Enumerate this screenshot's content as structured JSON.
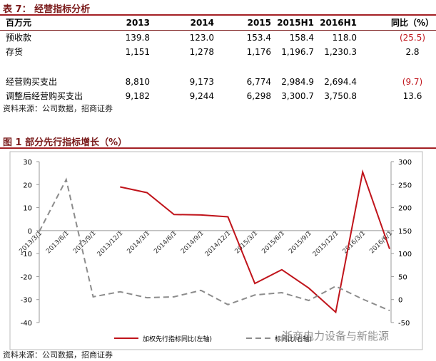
{
  "table_title": "表 7： 经营指标分析",
  "table": {
    "header": [
      "百万元",
      "2013",
      "2014",
      "2015",
      "2015H1",
      "2016H1",
      "同比（%）"
    ],
    "rows": [
      [
        "预收款",
        "139.8",
        "123.0",
        "153.4",
        "158.4",
        "118.0",
        "(25.5)"
      ],
      [
        "存货",
        "1,151",
        "1,278",
        "1,176",
        "1,196.7",
        "1,230.3",
        "2.8"
      ],
      [
        "经营购买支出",
        "8,810",
        "9,173",
        "6,774",
        "2,984.9",
        "2,694.4",
        "(9.7)"
      ],
      [
        "调整后经营购买支出",
        "9,182",
        "9,244",
        "6,298",
        "3,300.7",
        "3,750.8",
        "13.6"
      ]
    ]
  },
  "table_source": "资料来源：公司数据，招商证券",
  "figure_title": "图 1 部分先行指标增长（%）",
  "chart_data": {
    "type": "line",
    "categories": [
      "2013/3/1",
      "2013/6/1",
      "2013/9/1",
      "2013/12/1",
      "2014/3/1",
      "2014/6/1",
      "2014/9/1",
      "2014/12/1",
      "2015/3/1",
      "2015/6/1",
      "2015/9/1",
      "2015/12/1",
      "2016/3/1",
      "2016/6/1"
    ],
    "series": [
      {
        "name": "加权先行指标同比(左轴)",
        "color": "#c0141b",
        "values": [
          null,
          null,
          null,
          19,
          16.5,
          7,
          6.8,
          6,
          -23,
          -17,
          -25,
          -35.5,
          25.5,
          -8
        ]
      },
      {
        "name": "标同比(右轴)",
        "color": "#8c8c8c",
        "axis": "y2",
        "dashed": true,
        "values": [
          148,
          261,
          6,
          17,
          4,
          6,
          20,
          -11,
          10,
          15,
          -2,
          29,
          1,
          -24
        ]
      }
    ],
    "ylim": [
      -40,
      30
    ],
    "yticks": [
      -40,
      -30,
      -20,
      -10,
      0,
      10,
      20,
      30
    ],
    "y2lim": [
      -50,
      300
    ],
    "y2ticks": [
      -50,
      0,
      50,
      100,
      150,
      200,
      250,
      300
    ]
  },
  "watermark": "浙商电力设备与新能源",
  "figure_source": "资料来源：公司数据，招商证券"
}
